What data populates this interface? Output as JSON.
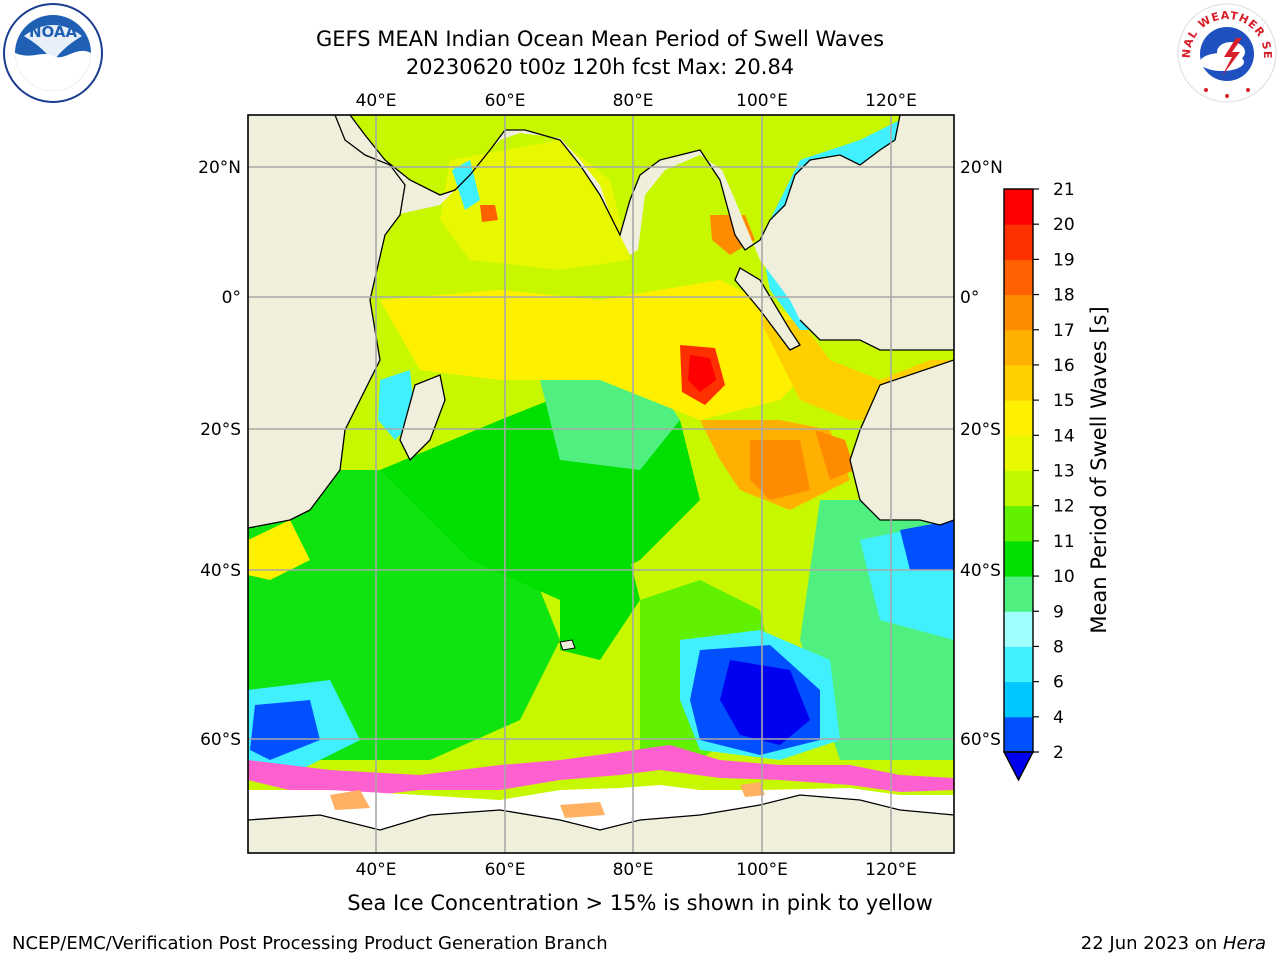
{
  "title": {
    "line1": "GEFS MEAN Indian Ocean Mean Period of Swell Waves",
    "line2": "20230620 t00z 120h fcst   Max: 20.84"
  },
  "logos": {
    "left_icon": "noaa-logo-icon",
    "left_text": "NOAA",
    "right_icon": "nws-logo-icon",
    "right_text": "NATIONAL WEATHER SERVICE"
  },
  "map": {
    "lon_labels": [
      "40°E",
      "60°E",
      "80°E",
      "100°E",
      "120°E"
    ],
    "lat_labels": [
      "20°N",
      "0°",
      "20°S",
      "40°S",
      "60°S"
    ],
    "extent": {
      "lon": [
        20,
        130
      ],
      "lat": [
        -80,
        28
      ]
    }
  },
  "colorbar": {
    "label": "Mean Period of Swell Waves [s]",
    "ticks": [
      "2",
      "4",
      "6",
      "8",
      "9",
      "10",
      "11",
      "12",
      "13",
      "14",
      "15",
      "16",
      "17",
      "18",
      "19",
      "20",
      "21"
    ],
    "colors": [
      "#0050ff",
      "#00c8ff",
      "#40f0ff",
      "#a0ffff",
      "#50f080",
      "#00e000",
      "#60f000",
      "#c0f800",
      "#e8f800",
      "#fff000",
      "#ffd000",
      "#ffb000",
      "#ff8c00",
      "#ff6000",
      "#ff3000",
      "#ff0000"
    ],
    "underflow_color": "#0000f0"
  },
  "footnote": "Sea Ice Concentration > 15% is shown in pink to yellow",
  "credits": {
    "left": "NCEP/EMC/Verification Post Processing Product Generation Branch",
    "right_date": "22 Jun 2023 on ",
    "right_host": "Hera"
  }
}
